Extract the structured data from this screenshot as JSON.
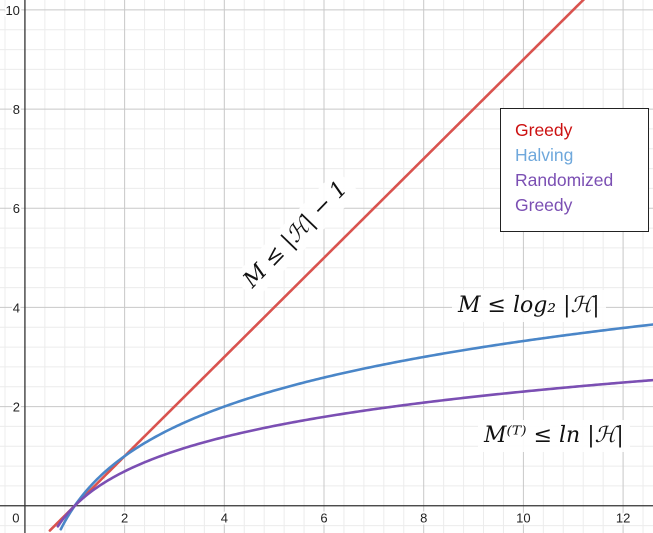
{
  "chart_data": {
    "type": "line",
    "title": "",
    "xlabel": "",
    "ylabel": "",
    "xlim": [
      -0.5,
      12.6
    ],
    "ylim": [
      -0.55,
      10.2
    ],
    "grid": true,
    "minor_grid": true,
    "x_tick_labels": [
      "2",
      "4",
      "6",
      "8",
      "10",
      "12"
    ],
    "x_tick_values": [
      2,
      4,
      6,
      8,
      10,
      12
    ],
    "y_tick_labels": [
      "2",
      "4",
      "6",
      "8",
      "10"
    ],
    "y_tick_values": [
      2,
      4,
      6,
      8,
      10
    ],
    "origin_label": "0",
    "series": [
      {
        "name": "Greedy",
        "color": "#d9534f",
        "function": "x - 1",
        "x_range": [
          0.5,
          12.6
        ]
      },
      {
        "name": "Halving",
        "color": "#4a86c8",
        "function": "log2(x)",
        "x_range": [
          0.72,
          12.6
        ]
      },
      {
        "name": "Randomized Greedy",
        "color": "#7b4fb3",
        "function": "ln(x)",
        "x_range": [
          0.66,
          12.6
        ]
      }
    ],
    "legend": {
      "placement": "upper-right",
      "entries": [
        {
          "label": "Greedy",
          "color": "#cc1111"
        },
        {
          "label": "Halving",
          "color": "#6fa8dc"
        },
        {
          "label": "Randomized",
          "color": "#7b4fb3"
        },
        {
          "label": "Greedy",
          "color": "#7b4fb3"
        }
      ]
    },
    "annotations": [
      {
        "text": "M ≤ |ℋ| − 1",
        "series": "Greedy"
      },
      {
        "text": "M ≤ log₂ |ℋ|",
        "series": "Halving"
      },
      {
        "text": "M⁽ᵀ⁾ ≤ ln |ℋ|",
        "series": "Randomized Greedy"
      }
    ]
  }
}
